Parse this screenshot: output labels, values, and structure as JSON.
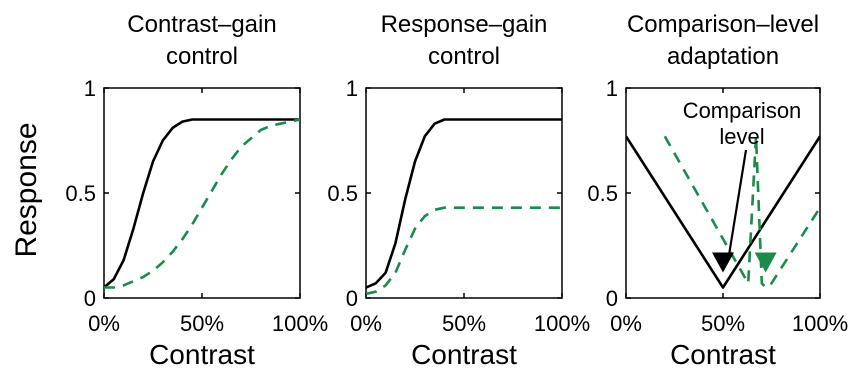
{
  "figure": {
    "ylabel": "Response",
    "colors": {
      "solid": "#000000",
      "dashed": "#1b8a4a"
    }
  },
  "chart_data": [
    {
      "type": "line",
      "title": [
        "Contrast–gain",
        "control"
      ],
      "xlabel": "Contrast",
      "ylabel": "Response",
      "xlim": [
        0,
        100
      ],
      "ylim": [
        0,
        1
      ],
      "xticks": [
        "0%",
        "50%",
        "100%"
      ],
      "yticks": [
        "0",
        "0.5",
        "1"
      ],
      "grid": false,
      "series": [
        {
          "style": "solid",
          "x": [
            0,
            5,
            10,
            15,
            20,
            25,
            30,
            35,
            40,
            45,
            50,
            55,
            60,
            65,
            70,
            75,
            80,
            85,
            90,
            95,
            100
          ],
          "y": [
            0.05,
            0.09,
            0.18,
            0.33,
            0.5,
            0.65,
            0.75,
            0.81,
            0.84,
            0.85,
            0.85,
            0.85,
            0.85,
            0.85,
            0.85,
            0.85,
            0.85,
            0.85,
            0.85,
            0.85,
            0.85
          ]
        },
        {
          "style": "dashed",
          "x": [
            0,
            5,
            10,
            15,
            20,
            25,
            30,
            35,
            40,
            45,
            50,
            55,
            60,
            65,
            70,
            75,
            80,
            85,
            90,
            95,
            100
          ],
          "y": [
            0.05,
            0.05,
            0.06,
            0.08,
            0.1,
            0.13,
            0.17,
            0.22,
            0.28,
            0.35,
            0.43,
            0.51,
            0.59,
            0.66,
            0.72,
            0.76,
            0.8,
            0.82,
            0.83,
            0.84,
            0.85
          ]
        }
      ]
    },
    {
      "type": "line",
      "title": [
        "Response–gain",
        "control"
      ],
      "xlabel": "Contrast",
      "xlim": [
        0,
        100
      ],
      "ylim": [
        0,
        1
      ],
      "xticks": [
        "0%",
        "50%",
        "100%"
      ],
      "yticks": [
        "0",
        "0.5",
        "1"
      ],
      "grid": false,
      "series": [
        {
          "style": "solid",
          "x": [
            0,
            5,
            10,
            15,
            20,
            25,
            30,
            35,
            40,
            45,
            50,
            55,
            60,
            65,
            70,
            75,
            80,
            85,
            90,
            95,
            100
          ],
          "y": [
            0.05,
            0.07,
            0.12,
            0.26,
            0.47,
            0.65,
            0.77,
            0.83,
            0.85,
            0.85,
            0.85,
            0.85,
            0.85,
            0.85,
            0.85,
            0.85,
            0.85,
            0.85,
            0.85,
            0.85,
            0.85
          ]
        },
        {
          "style": "dashed",
          "x": [
            0,
            5,
            10,
            15,
            20,
            25,
            30,
            35,
            40,
            45,
            50,
            55,
            60,
            65,
            70,
            75,
            80,
            85,
            90,
            95,
            100
          ],
          "y": [
            0.02,
            0.03,
            0.06,
            0.12,
            0.23,
            0.33,
            0.39,
            0.42,
            0.43,
            0.43,
            0.43,
            0.43,
            0.43,
            0.43,
            0.43,
            0.43,
            0.43,
            0.43,
            0.43,
            0.43,
            0.43
          ]
        }
      ]
    },
    {
      "type": "line",
      "title": [
        "Comparison–level",
        "adaptation"
      ],
      "xlabel": "Contrast",
      "xlim": [
        0,
        100
      ],
      "ylim": [
        0,
        1
      ],
      "xticks": [
        "0%",
        "50%",
        "100%"
      ],
      "yticks": [
        "0",
        "0.5",
        "1"
      ],
      "grid": false,
      "series": [
        {
          "style": "solid",
          "x": [
            0,
            50,
            100
          ],
          "y": [
            0.77,
            0.05,
            0.77
          ]
        },
        {
          "style": "dashed",
          "x": [
            20,
            63,
            67,
            70,
            72,
            75,
            100
          ],
          "y": [
            0.77,
            0.07,
            0.77,
            0.07,
            0.05,
            0.07,
            0.43
          ]
        }
      ],
      "annotations": [
        {
          "text": [
            "Comparison",
            "level"
          ]
        },
        {
          "marker": "down-triangle",
          "style": "solid",
          "x": 50,
          "y": 0.15
        },
        {
          "marker": "down-triangle",
          "style": "dashed",
          "x": 72,
          "y": 0.15
        }
      ]
    }
  ]
}
